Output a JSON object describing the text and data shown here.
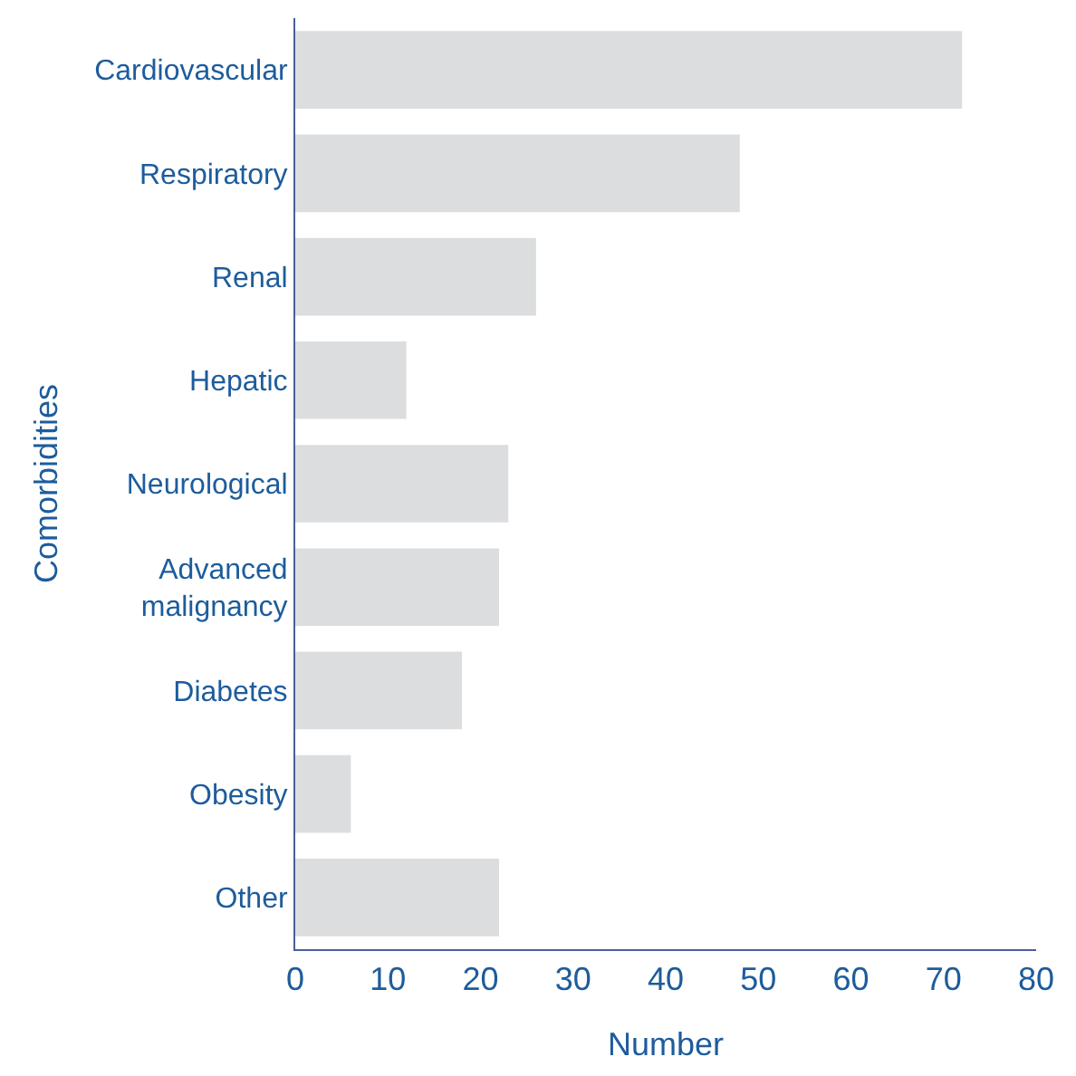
{
  "chart_data": {
    "type": "bar",
    "orientation": "horizontal",
    "xlabel": "Number",
    "ylabel": "Comorbidities",
    "categories": [
      "Cardiovascular",
      "Respiratory",
      "Renal",
      "Hepatic",
      "Neurological",
      "Advanced malignancy",
      "Diabetes",
      "Obesity",
      "Other"
    ],
    "values": [
      72,
      48,
      26,
      12,
      23,
      22,
      18,
      6,
      22
    ],
    "color": "#dcdddf",
    "xlim": [
      0,
      80
    ],
    "xticks": [
      0,
      10,
      20,
      30,
      40,
      50,
      60,
      70,
      80
    ]
  }
}
